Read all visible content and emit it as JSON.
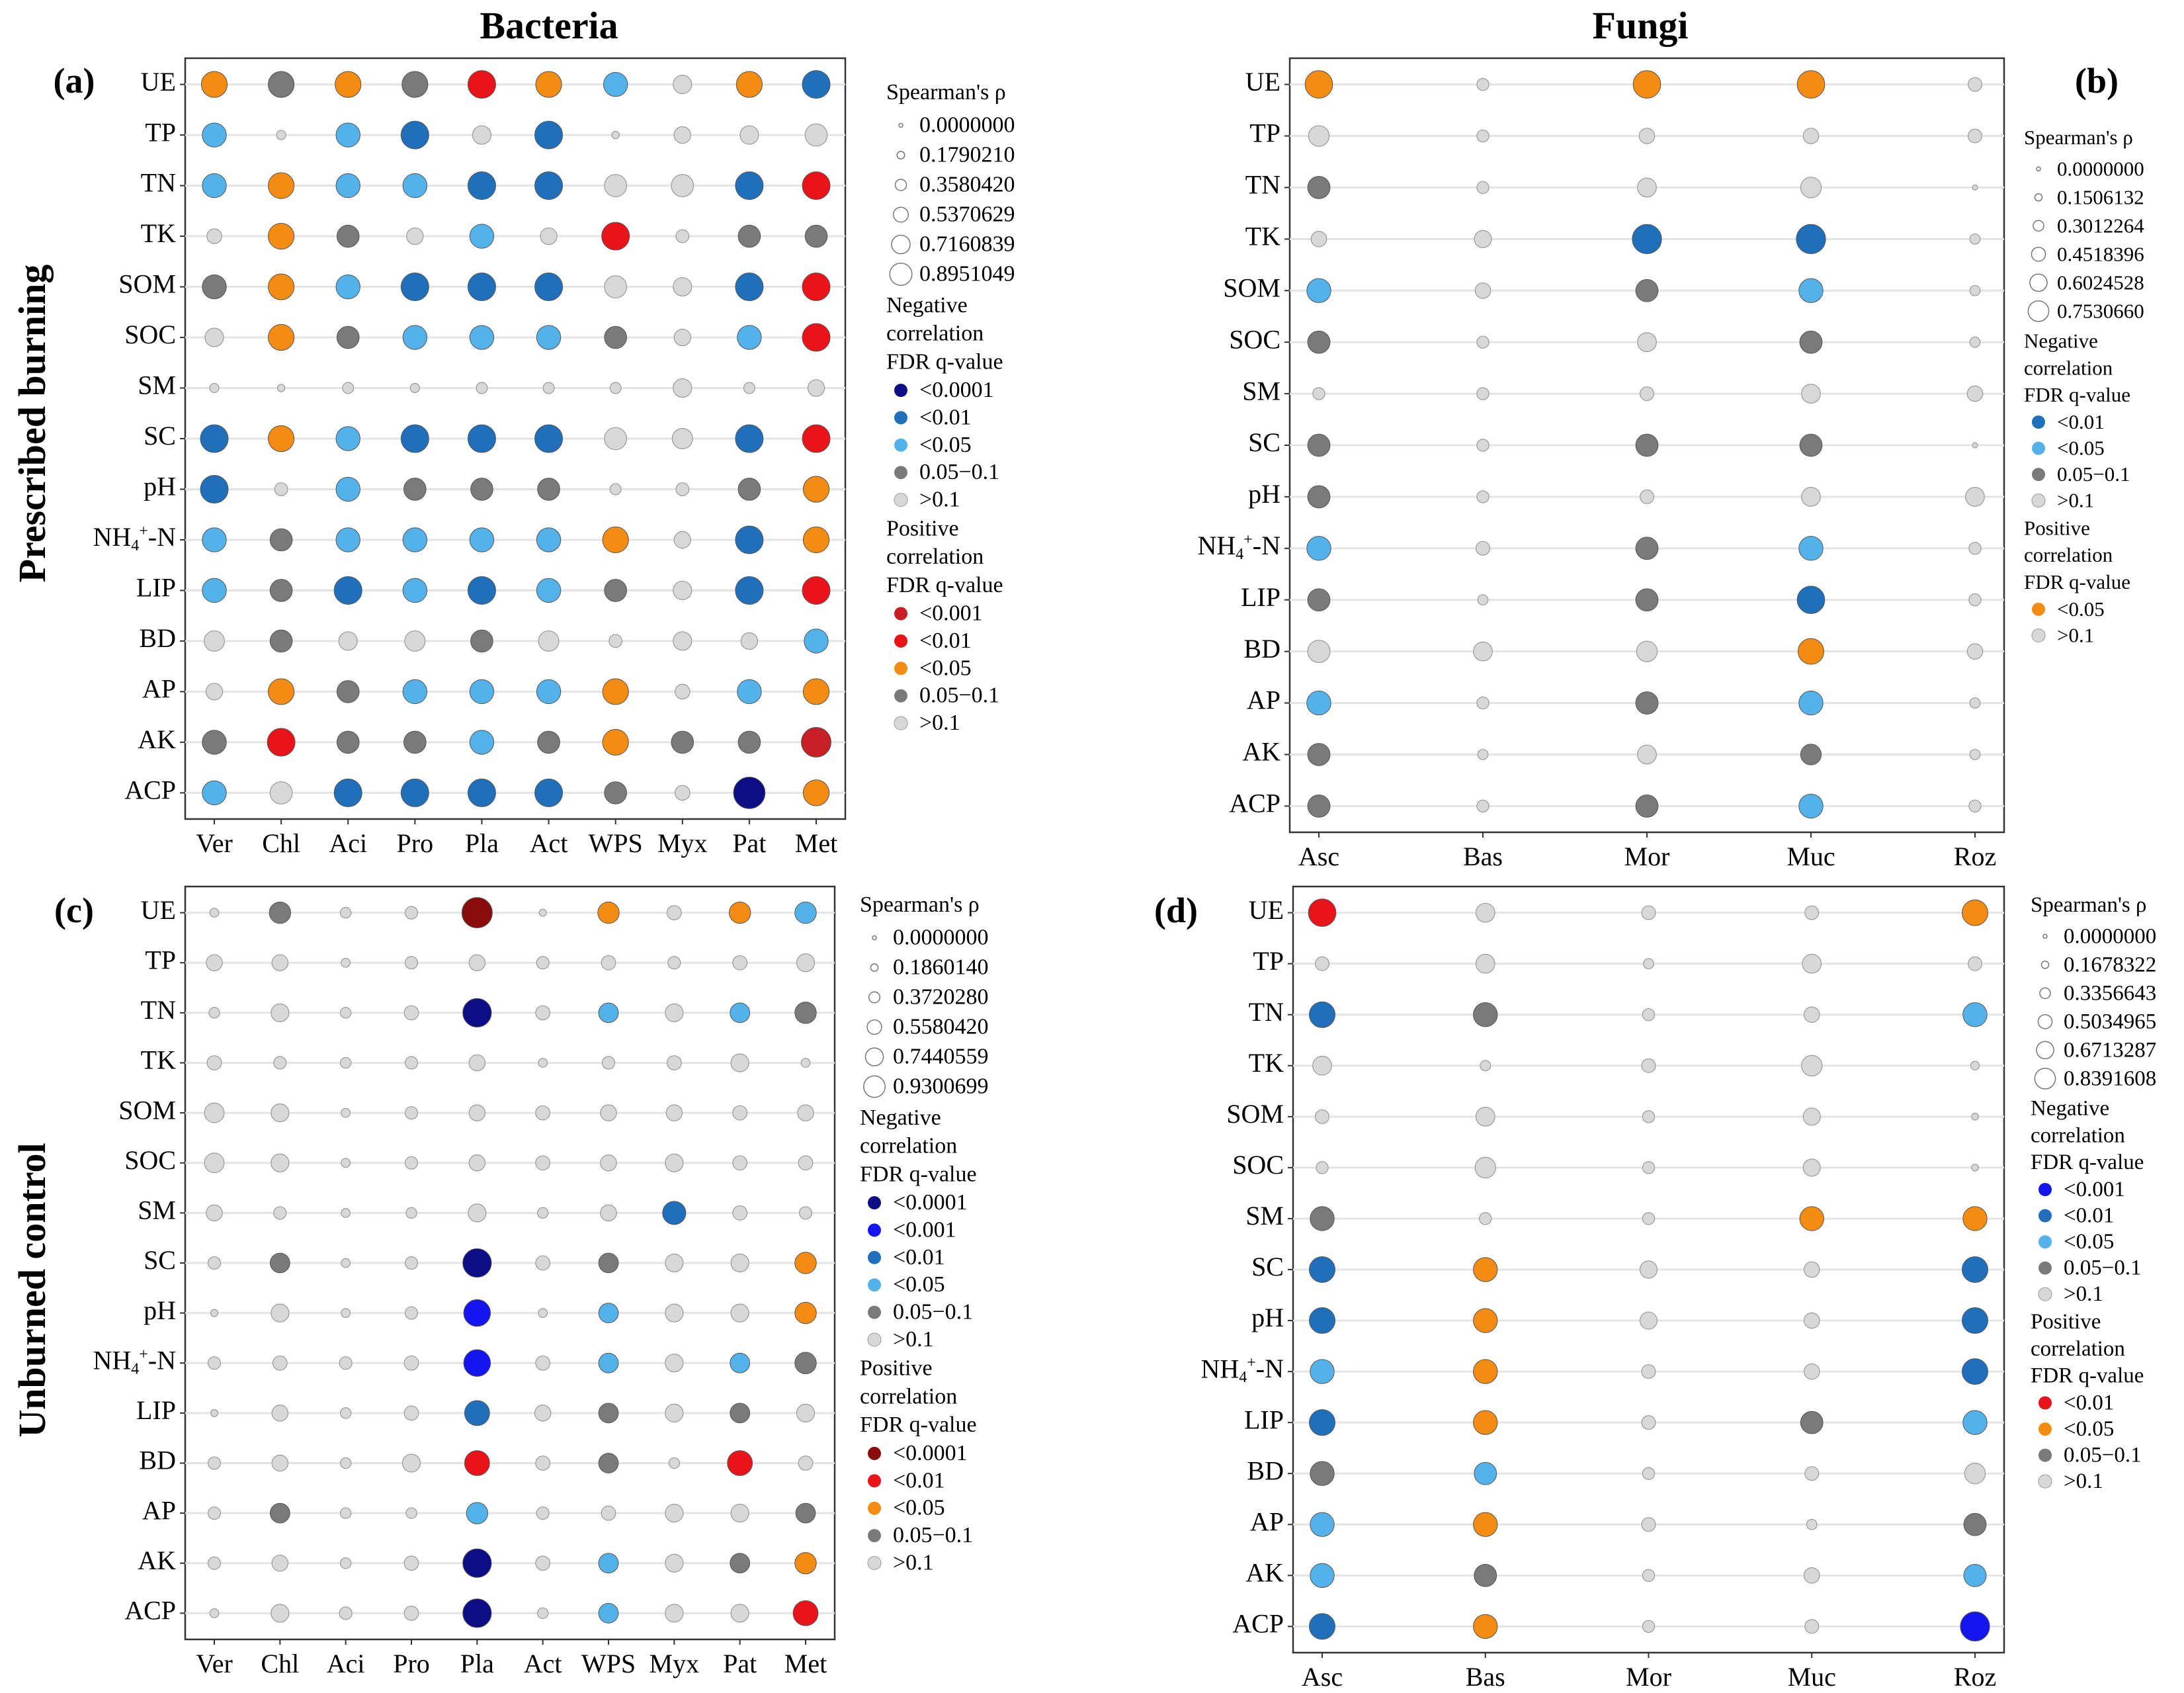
{
  "col_titles": {
    "bacteria": "Bacteria",
    "fungi": "Fungi"
  },
  "row_titles": {
    "burned": "Prescribed burning",
    "unburned": "Unburned control"
  },
  "legend_text": {
    "size_title": "Spearman's ρ",
    "neg": [
      "Negative",
      "correlation",
      "FDR q-value"
    ],
    "pos": [
      "Positive",
      "correlation",
      "FDR q-value"
    ]
  },
  "colors": {
    "n4": "#0d0d85",
    "n3": "#1515f0",
    "n2": "#1f6fba",
    "n1": "#54b2ea",
    "gray": "#7a7a7a",
    "light": "#d8d8d8",
    "p4": "#8a0b0b",
    "p3": "#c81e26",
    "p2": "#e8141a",
    "p1": "#f48b12"
  },
  "chart_data": [
    {
      "type": "scatter",
      "panel": "(a)",
      "title": "Bacteria",
      "x": [
        "Ver",
        "Chl",
        "Aci",
        "Pro",
        "Pla",
        "Act",
        "WPS",
        "Myx",
        "Pat",
        "Met"
      ],
      "y": [
        "UE",
        "TP",
        "TN",
        "TK",
        "SOM",
        "SOC",
        "SM",
        "SC",
        "pH",
        "NH4+-N",
        "LIP",
        "BD",
        "AP",
        "AK",
        "ACP"
      ],
      "size_legend": [
        "0.0000000",
        "0.1790210",
        "0.3580420",
        "0.5370629",
        "0.7160839",
        "0.8951049"
      ],
      "neg_legend": [
        {
          "label": "<0.0001",
          "c": "n4"
        },
        {
          "label": "<0.01",
          "c": "n2"
        },
        {
          "label": "<0.05",
          "c": "n1"
        },
        {
          "label": "0.05−0.1",
          "c": "gray"
        },
        {
          "label": ">0.1",
          "c": "light"
        }
      ],
      "pos_legend": [
        {
          "label": "<0.001",
          "c": "p3"
        },
        {
          "label": "<0.01",
          "c": "p2"
        },
        {
          "label": "<0.05",
          "c": "p1"
        },
        {
          "label": "0.05−0.1",
          "c": "gray"
        },
        {
          "label": ">0.1",
          "c": "light"
        }
      ],
      "cells": [
        [
          "p1-.7",
          "gray-.7",
          "p1-.7",
          "gray-.7",
          "p2-.75",
          "p1-.7",
          "n1-.65",
          "light-.5",
          "p1-.7",
          "n2-.75"
        ],
        [
          "n1-.65",
          "light-.25",
          "n1-.65",
          "n2-.75",
          "light-.5",
          "n2-.75",
          "light-.2",
          "light-.45",
          "light-.5",
          "light-.6"
        ],
        [
          "n1-.65",
          "p1-.7",
          "n1-.65",
          "n1-.65",
          "n2-.75",
          "n2-.75",
          "light-.6",
          "light-.6",
          "n2-.75",
          "p2-.75"
        ],
        [
          "light-.4",
          "p1-.7",
          "gray-.6",
          "light-.45",
          "n1-.65",
          "light-.45",
          "p2-.75",
          "light-.35",
          "gray-.6",
          "gray-.6"
        ],
        [
          "gray-.65",
          "p1-.7",
          "n1-.65",
          "n2-.75",
          "n2-.75",
          "n2-.75",
          "light-.6",
          "light-.5",
          "n2-.75",
          "p2-.75"
        ],
        [
          "light-.5",
          "p1-.7",
          "gray-.6",
          "n1-.65",
          "n1-.65",
          "n1-.65",
          "gray-.6",
          "light-.45",
          "n1-.65",
          "p2-.75"
        ],
        [
          "light-.25",
          "light-.2",
          "light-.3",
          "light-.25",
          "light-.3",
          "light-.3",
          "light-.3",
          "light-.5",
          "light-.3",
          "light-.45"
        ],
        [
          "n2-.75",
          "p1-.7",
          "n1-.65",
          "n2-.75",
          "n2-.75",
          "n2-.75",
          "light-.6",
          "light-.55",
          "n2-.75",
          "p2-.75"
        ],
        [
          "n2-.75",
          "light-.35",
          "n1-.65",
          "gray-.6",
          "gray-.6",
          "gray-.6",
          "light-.3",
          "light-.35",
          "gray-.6",
          "p1-.7"
        ],
        [
          "n1-.65",
          "gray-.6",
          "n1-.65",
          "n1-.65",
          "n1-.65",
          "n1-.65",
          "p1-.7",
          "light-.45",
          "n2-.75",
          "p1-.7"
        ],
        [
          "n1-.65",
          "gray-.6",
          "n2-.75",
          "n1-.65",
          "n2-.75",
          "n1-.65",
          "gray-.6",
          "light-.5",
          "n2-.75",
          "p2-.75"
        ],
        [
          "light-.55",
          "gray-.6",
          "light-.5",
          "light-.55",
          "gray-.6",
          "light-.55",
          "light-.35",
          "light-.5",
          "light-.45",
          "n1-.65"
        ],
        [
          "light-.45",
          "p1-.7",
          "gray-.6",
          "n1-.65",
          "n1-.65",
          "n1-.65",
          "p1-.7",
          "light-.4",
          "n1-.65",
          "p1-.7"
        ],
        [
          "gray-.65",
          "p2-.75",
          "gray-.6",
          "gray-.6",
          "n1-.65",
          "gray-.6",
          "p1-.7",
          "gray-.6",
          "gray-.6",
          "p3-.8"
        ],
        [
          "n1-.65",
          "light-.6",
          "n2-.75",
          "n2-.75",
          "n2-.75",
          "n2-.75",
          "gray-.6",
          "light-.4",
          "n4-.85",
          "p1-.7"
        ]
      ]
    },
    {
      "type": "scatter",
      "panel": "(b)",
      "title": "Fungi",
      "x": [
        "Asc",
        "Bas",
        "Mor",
        "Muc",
        "Roz"
      ],
      "y": [
        "UE",
        "TP",
        "TN",
        "TK",
        "SOM",
        "SOC",
        "SM",
        "SC",
        "pH",
        "NH4+-N",
        "LIP",
        "BD",
        "AP",
        "AK",
        "ACP"
      ],
      "size_legend": [
        "0.0000000",
        "0.1506132",
        "0.3012264",
        "0.4518396",
        "0.6024528",
        "0.7530660"
      ],
      "neg_legend": [
        {
          "label": "<0.01",
          "c": "n2"
        },
        {
          "label": "<0.05",
          "c": "n1"
        },
        {
          "label": "0.05−0.1",
          "c": "gray"
        },
        {
          "label": ">0.1",
          "c": "light"
        }
      ],
      "pos_legend": [
        {
          "label": "<0.05",
          "c": "p1"
        },
        {
          "label": ">0.1",
          "c": "light"
        }
      ],
      "cells": [
        [
          "p1-.8",
          "light-.35",
          "p1-.8",
          "p1-.8",
          "light-.4"
        ],
        [
          "light-.6",
          "light-.35",
          "light-.45",
          "light-.45",
          "light-.4"
        ],
        [
          "gray-.65",
          "light-.35",
          "light-.55",
          "light-.6",
          "light-.15"
        ],
        [
          "light-.45",
          "light-.5",
          "n2-.85",
          "n2-.85",
          "light-.3"
        ],
        [
          "n1-.7",
          "light-.45",
          "gray-.65",
          "n1-.7",
          "light-.3"
        ],
        [
          "gray-.65",
          "light-.35",
          "light-.55",
          "gray-.65",
          "light-.3"
        ],
        [
          "light-.35",
          "light-.35",
          "light-.4",
          "light-.55",
          "light-.45"
        ],
        [
          "gray-.65",
          "light-.35",
          "gray-.65",
          "gray-.65",
          "light-.15"
        ],
        [
          "gray-.65",
          "light-.35",
          "light-.4",
          "light-.55",
          "light-.55"
        ],
        [
          "n1-.7",
          "light-.4",
          "gray-.65",
          "n1-.7",
          "light-.35"
        ],
        [
          "gray-.65",
          "light-.3",
          "gray-.65",
          "n2-.8",
          "light-.35"
        ],
        [
          "light-.65",
          "light-.55",
          "light-.6",
          "p1-.75",
          "light-.45"
        ],
        [
          "n1-.7",
          "light-.35",
          "gray-.65",
          "n1-.7",
          "light-.3"
        ],
        [
          "gray-.65",
          "light-.3",
          "light-.55",
          "gray-.6",
          "light-.3"
        ],
        [
          "gray-.65",
          "light-.35",
          "gray-.65",
          "n1-.7",
          "light-.35"
        ]
      ]
    },
    {
      "type": "scatter",
      "panel": "(c)",
      "title": "Unburned control",
      "x": [
        "Ver",
        "Chl",
        "Aci",
        "Pro",
        "Pla",
        "Act",
        "WPS",
        "Myx",
        "Pat",
        "Met"
      ],
      "y": [
        "UE",
        "TP",
        "TN",
        "TK",
        "SOM",
        "SOC",
        "SM",
        "SC",
        "pH",
        "NH4+-N",
        "LIP",
        "BD",
        "AP",
        "AK",
        "ACP"
      ],
      "size_legend": [
        "0.0000000",
        "0.1860140",
        "0.3720280",
        "0.5580420",
        "0.7440559",
        "0.9300699"
      ],
      "neg_legend": [
        {
          "label": "<0.0001",
          "c": "n4"
        },
        {
          "label": "<0.001",
          "c": "n3"
        },
        {
          "label": "<0.01",
          "c": "n2"
        },
        {
          "label": "<0.05",
          "c": "n1"
        },
        {
          "label": "0.05−0.1",
          "c": "gray"
        },
        {
          "label": ">0.1",
          "c": "light"
        }
      ],
      "pos_legend": [
        {
          "label": "<0.0001",
          "c": "p4"
        },
        {
          "label": "<0.01",
          "c": "p2"
        },
        {
          "label": "<0.05",
          "c": "p1"
        },
        {
          "label": "0.05−0.1",
          "c": "gray"
        },
        {
          "label": ">0.1",
          "c": "light"
        }
      ],
      "cells": [
        [
          "light-.25",
          "gray-.6",
          "light-.3",
          "light-.35",
          "p4-.85",
          "light-.2",
          "p1-.6",
          "light-.4",
          "p1-.6",
          "n1-.6"
        ],
        [
          "light-.45",
          "light-.45",
          "light-.25",
          "light-.35",
          "light-.45",
          "light-.35",
          "light-.4",
          "light-.35",
          "light-.4",
          "light-.5"
        ],
        [
          "light-.3",
          "light-.5",
          "light-.3",
          "light-.4",
          "n4-.8",
          "light-.4",
          "n1-.55",
          "light-.5",
          "n1-.55",
          "gray-.6"
        ],
        [
          "light-.4",
          "light-.35",
          "light-.3",
          "light-.35",
          "light-.45",
          "light-.25",
          "light-.35",
          "light-.4",
          "light-.5",
          "light-.25"
        ],
        [
          "light-.55",
          "light-.5",
          "light-.25",
          "light-.35",
          "light-.45",
          "light-.4",
          "light-.45",
          "light-.45",
          "light-.4",
          "light-.45"
        ],
        [
          "light-.55",
          "light-.5",
          "light-.25",
          "light-.35",
          "light-.45",
          "light-.4",
          "light-.45",
          "light-.5",
          "light-.4",
          "light-.4"
        ],
        [
          "light-.45",
          "light-.35",
          "light-.25",
          "light-.3",
          "light-.5",
          "light-.3",
          "light-.45",
          "n2-.65",
          "light-.4",
          "light-.35"
        ],
        [
          "light-.35",
          "gray-.55",
          "light-.25",
          "light-.35",
          "n4-.8",
          "light-.4",
          "gray-.55",
          "light-.5",
          "light-.5",
          "p1-.6"
        ],
        [
          "light-.2",
          "light-.5",
          "light-.25",
          "light-.35",
          "n3-.75",
          "light-.25",
          "n1-.55",
          "light-.5",
          "light-.5",
          "p1-.6"
        ],
        [
          "light-.35",
          "light-.4",
          "light-.35",
          "light-.4",
          "n3-.75",
          "light-.4",
          "n1-.55",
          "light-.5",
          "n1-.55",
          "gray-.6"
        ],
        [
          "light-.2",
          "light-.45",
          "light-.3",
          "light-.4",
          "n2-.7",
          "light-.45",
          "gray-.55",
          "light-.5",
          "gray-.55",
          "light-.5"
        ],
        [
          "light-.35",
          "light-.45",
          "light-.3",
          "light-.5",
          "p2-.7",
          "light-.4",
          "gray-.55",
          "light-.3",
          "p2-.7",
          "light-.4"
        ],
        [
          "light-.35",
          "gray-.55",
          "light-.3",
          "light-.3",
          "n1-.6",
          "light-.35",
          "light-.4",
          "light-.5",
          "light-.5",
          "gray-.55"
        ],
        [
          "light-.35",
          "light-.45",
          "light-.3",
          "light-.4",
          "n4-.8",
          "light-.4",
          "n1-.55",
          "light-.5",
          "gray-.55",
          "p1-.6"
        ],
        [
          "light-.25",
          "light-.5",
          "light-.35",
          "light-.4",
          "n4-.8",
          "light-.3",
          "n1-.55",
          "light-.5",
          "light-.5",
          "p2-.7"
        ]
      ]
    },
    {
      "type": "scatter",
      "panel": "(d)",
      "title": "Unburned control",
      "x": [
        "Asc",
        "Bas",
        "Mor",
        "Muc",
        "Roz"
      ],
      "y": [
        "UE",
        "TP",
        "TN",
        "TK",
        "SOM",
        "SOC",
        "SM",
        "SC",
        "pH",
        "NH4+-N",
        "LIP",
        "BD",
        "AP",
        "AK",
        "ACP"
      ],
      "size_legend": [
        "0.0000000",
        "0.1678322",
        "0.3356643",
        "0.5034965",
        "0.6713287",
        "0.8391608"
      ],
      "neg_legend": [
        {
          "label": "<0.001",
          "c": "n3"
        },
        {
          "label": "<0.01",
          "c": "n2"
        },
        {
          "label": "<0.05",
          "c": "n1"
        },
        {
          "label": "0.05−0.1",
          "c": "gray"
        },
        {
          "label": ">0.1",
          "c": "light"
        }
      ],
      "pos_legend": [
        {
          "label": "<0.01",
          "c": "p2"
        },
        {
          "label": "<0.05",
          "c": "p1"
        },
        {
          "label": "0.05−0.1",
          "c": "gray"
        },
        {
          "label": ">0.1",
          "c": "light"
        }
      ],
      "cells": [
        [
          "p2-.8",
          "light-.55",
          "light-.4",
          "light-.4",
          "p1-.75"
        ],
        [
          "light-.4",
          "light-.55",
          "light-.3",
          "light-.55",
          "light-.4"
        ],
        [
          "n2-.75",
          "gray-.7",
          "light-.35",
          "light-.45",
          "n1-.7"
        ],
        [
          "light-.55",
          "light-.3",
          "light-.4",
          "light-.6",
          "light-.25"
        ],
        [
          "light-.4",
          "light-.55",
          "light-.35",
          "light-.5",
          "light-.2"
        ],
        [
          "light-.35",
          "light-.6",
          "light-.35",
          "light-.5",
          "light-.2"
        ],
        [
          "gray-.7",
          "light-.35",
          "light-.35",
          "p1-.7",
          "p1-.7"
        ],
        [
          "n2-.75",
          "p1-.7",
          "light-.5",
          "light-.45",
          "n2-.75"
        ],
        [
          "n2-.75",
          "p1-.7",
          "light-.5",
          "light-.45",
          "n2-.75"
        ],
        [
          "n1-.7",
          "p1-.7",
          "light-.4",
          "light-.45",
          "n2-.75"
        ],
        [
          "n2-.75",
          "p1-.7",
          "light-.4",
          "gray-.65",
          "n1-.7"
        ],
        [
          "gray-.7",
          "n1-.65",
          "light-.35",
          "light-.4",
          "light-.6"
        ],
        [
          "n1-.7",
          "p1-.7",
          "light-.4",
          "light-.3",
          "gray-.65"
        ],
        [
          "n1-.7",
          "gray-.65",
          "light-.35",
          "light-.45",
          "n1-.65"
        ],
        [
          "n2-.75",
          "p1-.7",
          "light-.35",
          "light-.4",
          "n3-.85"
        ]
      ]
    }
  ]
}
